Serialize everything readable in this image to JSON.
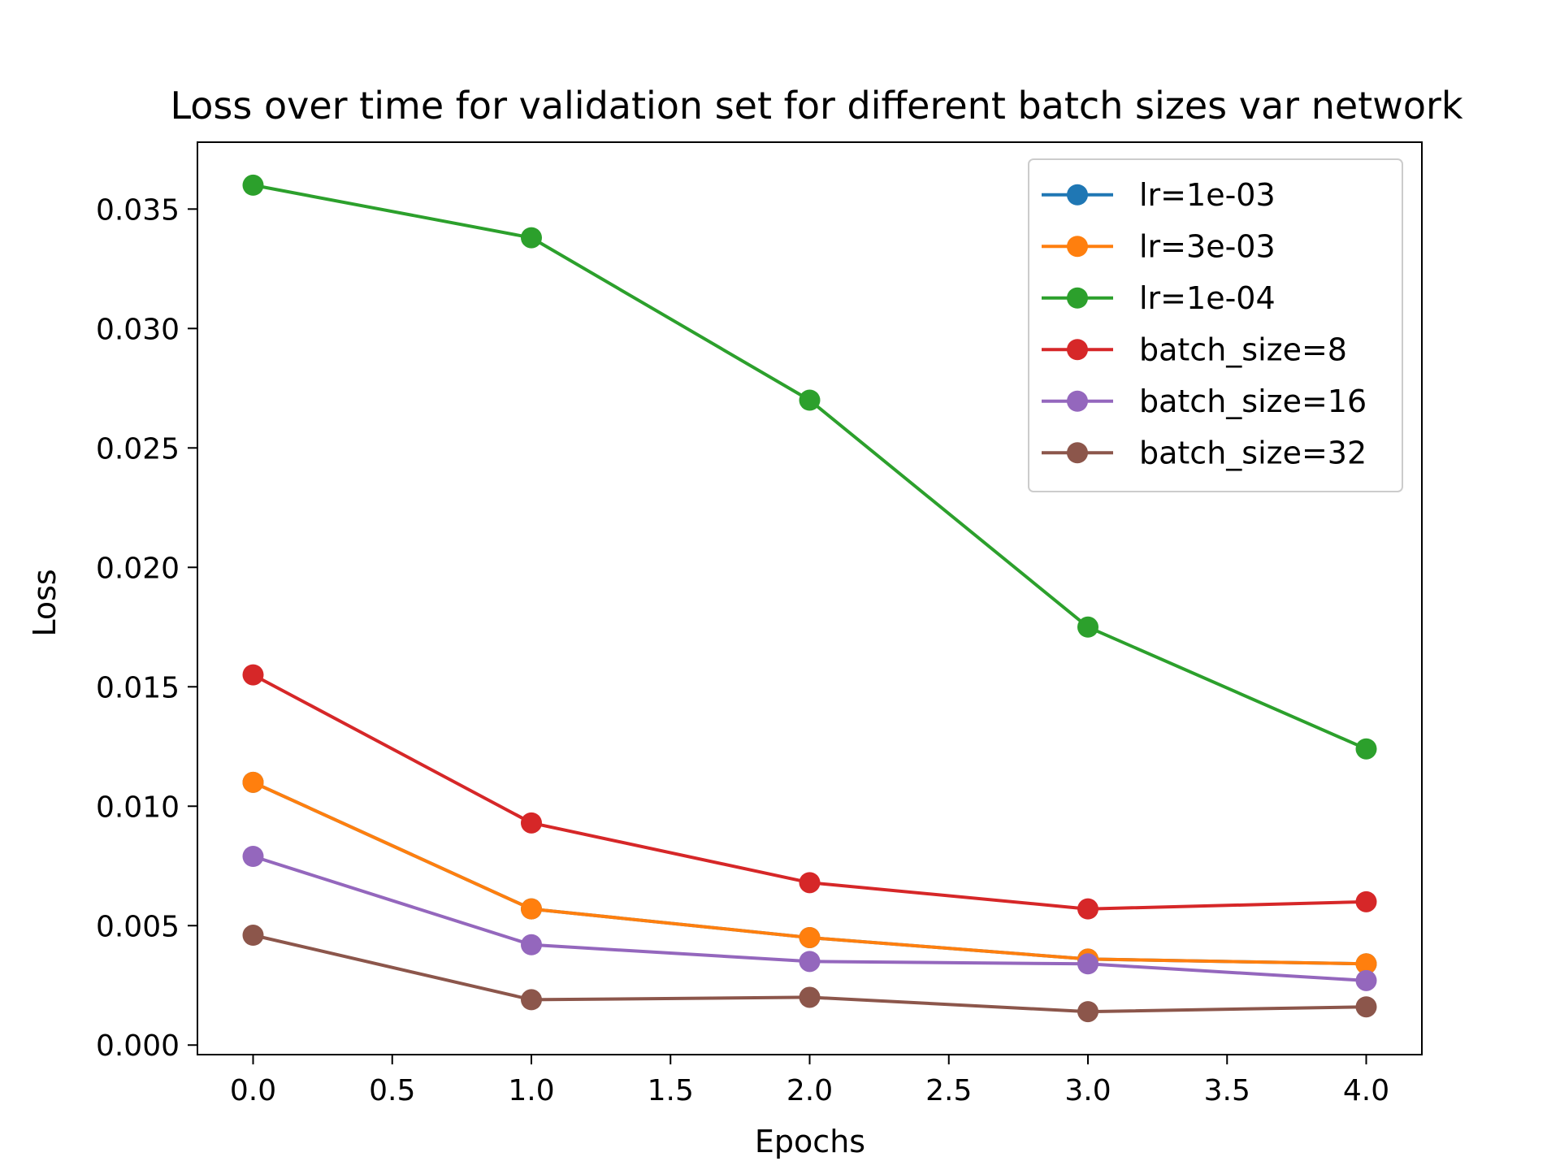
{
  "chart_data": {
    "type": "line",
    "title": "Loss over time for validation set for different batch sizes var network",
    "xlabel": "Epochs",
    "ylabel": "Loss",
    "xlim": [
      -0.2,
      4.2
    ],
    "ylim": [
      -0.0004,
      0.0378
    ],
    "xticks": [
      0.0,
      0.5,
      1.0,
      1.5,
      2.0,
      2.5,
      3.0,
      3.5,
      4.0
    ],
    "xtick_labels": [
      "0.0",
      "0.5",
      "1.0",
      "1.5",
      "2.0",
      "2.5",
      "3.0",
      "3.5",
      "4.0"
    ],
    "yticks": [
      0.0,
      0.005,
      0.01,
      0.015,
      0.02,
      0.025,
      0.03,
      0.035
    ],
    "ytick_labels": [
      "0.000",
      "0.005",
      "0.010",
      "0.015",
      "0.020",
      "0.025",
      "0.030",
      "0.035"
    ],
    "grid": false,
    "legend_position": "top-right",
    "x": [
      0,
      1,
      2,
      3,
      4
    ],
    "series": [
      {
        "name": "lr=1e-03",
        "color": "#1f77b4",
        "values": [
          0.011,
          0.0057,
          0.0045,
          0.0036,
          0.0034
        ]
      },
      {
        "name": "lr=3e-03",
        "color": "#ff7f0e",
        "values": [
          0.011,
          0.0057,
          0.0045,
          0.0036,
          0.0034
        ]
      },
      {
        "name": "lr=1e-04",
        "color": "#2ca02c",
        "values": [
          0.036,
          0.0338,
          0.027,
          0.0175,
          0.0124
        ]
      },
      {
        "name": "batch_size=8",
        "color": "#d62728",
        "values": [
          0.0155,
          0.0093,
          0.0068,
          0.0057,
          0.006
        ]
      },
      {
        "name": "batch_size=16",
        "color": "#9467bd",
        "values": [
          0.0079,
          0.0042,
          0.0035,
          0.0034,
          0.0027
        ]
      },
      {
        "name": "batch_size=32",
        "color": "#8c564b",
        "values": [
          0.0046,
          0.0019,
          0.002,
          0.0014,
          0.0016
        ]
      }
    ]
  }
}
